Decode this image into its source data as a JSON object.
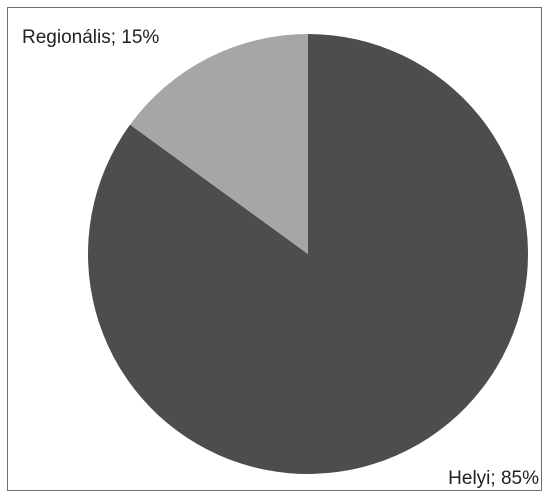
{
  "chart_data": {
    "type": "pie",
    "title": "",
    "slices": [
      {
        "label": "Helyi",
        "value": 85,
        "data_label": "Helyi; 85%",
        "color": "#4d4d4d"
      },
      {
        "label": "Regionális",
        "value": 15,
        "data_label": "Regionális; 15%",
        "color": "#a6a6a6"
      }
    ],
    "start_angle_deg": 0,
    "direction": "clockwise",
    "legend": "none"
  }
}
